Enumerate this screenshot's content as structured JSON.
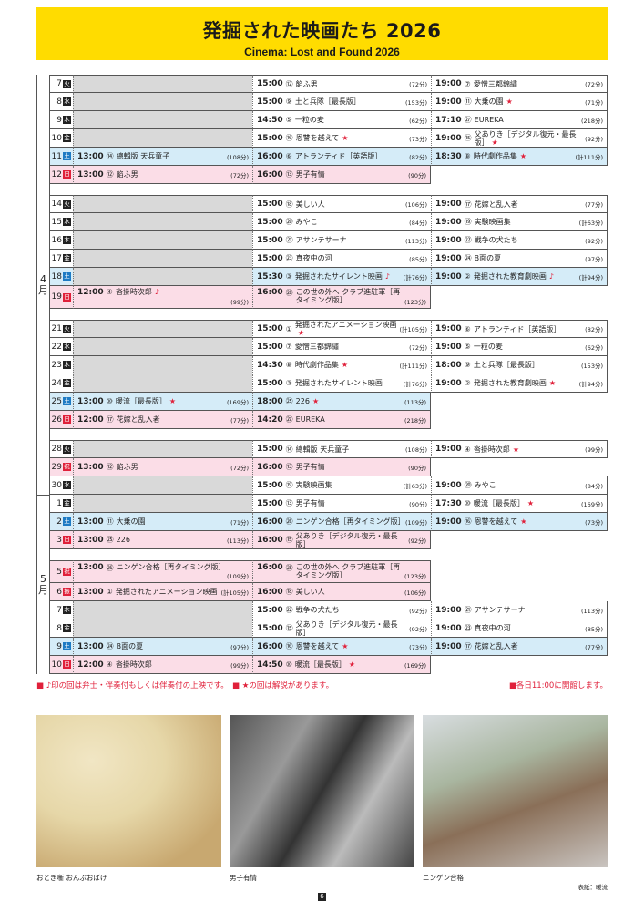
{
  "header": {
    "title": "発掘された映画たち 2026",
    "subtitle": "Cinema: Lost and Found 2026"
  },
  "colors": {
    "header_bg": "#ffdc00",
    "saturday_bg": "#d5ecf8",
    "sunday_holiday_bg": "#fbdde7",
    "no_screening_bg": "#d9d9d9",
    "star": "#e0203a"
  },
  "months": [
    {
      "label": "4",
      "unit": "月"
    },
    {
      "label": "5",
      "unit": "月"
    }
  ],
  "weeks": [
    [
      {
        "day": "7",
        "dow": "火",
        "type": "wd",
        "cells": [
          null,
          {
            "time": "15:00",
            "num": "⑫",
            "title": "餡ふ男",
            "dur": "(72分)"
          },
          {
            "time": "19:00",
            "num": "⑦",
            "title": "愛憎三都錦繡",
            "dur": "(72分)"
          }
        ]
      },
      {
        "day": "8",
        "dow": "水",
        "type": "wd",
        "cells": [
          null,
          {
            "time": "15:00",
            "num": "⑨",
            "title": "土と兵隊［最長版］",
            "dur": "(153分)"
          },
          {
            "time": "19:00",
            "num": "⑪",
            "title": "大乗の園",
            "star": "★",
            "dur": "(71分)"
          }
        ]
      },
      {
        "day": "9",
        "dow": "木",
        "type": "wd",
        "cells": [
          null,
          {
            "time": "14:50",
            "num": "⑤",
            "title": "一粒の麦",
            "dur": "(62分)"
          },
          {
            "time": "17:10",
            "num": "㉗",
            "title": "EUREKA",
            "dur": "(218分)"
          }
        ]
      },
      {
        "day": "10",
        "dow": "金",
        "type": "wd",
        "cells": [
          null,
          {
            "time": "15:00",
            "num": "⑯",
            "title": "恩讐を越えて",
            "star": "★",
            "dur": "(73分)"
          },
          {
            "time": "19:00",
            "num": "⑮",
            "title": "父ありき［デジタル復元・最長版］",
            "star": "★",
            "dur": "(92分)"
          }
        ]
      },
      {
        "day": "11",
        "dow": "土",
        "type": "sat",
        "cells": [
          {
            "time": "13:00",
            "num": "⑭",
            "title": "總輯版 天兵童子",
            "dur": "(108分)"
          },
          {
            "time": "16:00",
            "num": "⑥",
            "title": "アトランティド［英語版］",
            "dur": "(82分)"
          },
          {
            "time": "18:30",
            "num": "⑧",
            "title": "時代劇作品集",
            "star": "★",
            "dur": "(計111分)"
          }
        ]
      },
      {
        "day": "12",
        "dow": "日",
        "type": "sun",
        "cells": [
          {
            "time": "13:00",
            "num": "⑫",
            "title": "餡ふ男",
            "dur": "(72分)"
          },
          {
            "time": "16:00",
            "num": "⑬",
            "title": "男子有情",
            "dur": "(90分)"
          }
        ]
      }
    ],
    [
      {
        "day": "14",
        "dow": "火",
        "type": "wd",
        "cells": [
          null,
          {
            "time": "15:00",
            "num": "⑱",
            "title": "美しい人",
            "dur": "(106分)"
          },
          {
            "time": "19:00",
            "num": "⑰",
            "title": "花嫁と乱入者",
            "dur": "(77分)"
          }
        ]
      },
      {
        "day": "15",
        "dow": "水",
        "type": "wd",
        "cells": [
          null,
          {
            "time": "15:00",
            "num": "⑳",
            "title": "みやこ",
            "dur": "(84分)"
          },
          {
            "time": "19:00",
            "num": "⑲",
            "title": "実験映画集",
            "dur": "(計63分)"
          }
        ]
      },
      {
        "day": "16",
        "dow": "木",
        "type": "wd",
        "cells": [
          null,
          {
            "time": "15:00",
            "num": "㉑",
            "title": "アサンテサーナ",
            "dur": "(113分)"
          },
          {
            "time": "19:00",
            "num": "㉒",
            "title": "戦争の犬たち",
            "dur": "(92分)"
          }
        ]
      },
      {
        "day": "17",
        "dow": "金",
        "type": "wd",
        "cells": [
          null,
          {
            "time": "15:00",
            "num": "㉓",
            "title": "真夜中の河",
            "dur": "(85分)"
          },
          {
            "time": "19:00",
            "num": "㉔",
            "title": "B面の夏",
            "dur": "(97分)"
          }
        ]
      },
      {
        "day": "18",
        "dow": "土",
        "type": "sat",
        "cells": [
          null,
          {
            "time": "15:30",
            "num": "③",
            "title": "発掘されたサイレント映画",
            "note": "♪",
            "dur": "(計76分)"
          },
          {
            "time": "19:00",
            "num": "②",
            "title": "発掘された教育劇映画",
            "note": "♪",
            "dur": "(計94分)"
          }
        ]
      },
      {
        "day": "19",
        "dow": "日",
        "type": "sun",
        "tall": true,
        "cells": [
          {
            "time": "12:00",
            "num": "④",
            "title": "沓掛時次郎",
            "note": "♪",
            "dur": "(99分)"
          },
          {
            "time": "16:00",
            "num": "㉘",
            "title": "この世の外へ クラブ進駐軍［再タイミング版］",
            "dur": "(123分)"
          }
        ]
      }
    ],
    [
      {
        "day": "21",
        "dow": "火",
        "type": "wd",
        "cells": [
          null,
          {
            "time": "15:00",
            "num": "①",
            "title": "発掘されたアニメーション映画",
            "star": "★",
            "dur": "(計105分)"
          },
          {
            "time": "19:00",
            "num": "⑥",
            "title": "アトランティド［英語版］",
            "dur": "(82分)"
          }
        ]
      },
      {
        "day": "22",
        "dow": "水",
        "type": "wd",
        "cells": [
          null,
          {
            "time": "15:00",
            "num": "⑦",
            "title": "愛憎三都錦繡",
            "dur": "(72分)"
          },
          {
            "time": "19:00",
            "num": "⑤",
            "title": "一粒の麦",
            "dur": "(62分)"
          }
        ]
      },
      {
        "day": "23",
        "dow": "木",
        "type": "wd",
        "cells": [
          null,
          {
            "time": "14:30",
            "num": "⑧",
            "title": "時代劇作品集",
            "star": "★",
            "dur": "(計111分)"
          },
          {
            "time": "18:00",
            "num": "⑨",
            "title": "土と兵隊［最長版］",
            "dur": "(153分)"
          }
        ]
      },
      {
        "day": "24",
        "dow": "金",
        "type": "wd",
        "cells": [
          null,
          {
            "time": "15:00",
            "num": "③",
            "title": "発掘されたサイレント映画",
            "dur": "(計76分)"
          },
          {
            "time": "19:00",
            "num": "②",
            "title": "発掘された教育劇映画",
            "star": "★",
            "dur": "(計94分)"
          }
        ]
      },
      {
        "day": "25",
        "dow": "土",
        "type": "sat",
        "cells": [
          {
            "time": "13:00",
            "num": "⑩",
            "title": "暖流［最長版］",
            "star": "★",
            "dur": "(169分)"
          },
          {
            "time": "18:00",
            "num": "㉕",
            "title": "226",
            "star": "★",
            "dur": "(113分)"
          }
        ]
      },
      {
        "day": "26",
        "dow": "日",
        "type": "sun",
        "cells": [
          {
            "time": "12:00",
            "num": "⑰",
            "title": "花嫁と乱入者",
            "dur": "(77分)"
          },
          {
            "time": "14:20",
            "num": "㉗",
            "title": "EUREKA",
            "dur": "(218分)"
          }
        ]
      }
    ],
    [
      {
        "day": "28",
        "dow": "火",
        "type": "wd",
        "cells": [
          null,
          {
            "time": "15:00",
            "num": "⑭",
            "title": "總輯版 天兵童子",
            "dur": "(108分)"
          },
          {
            "time": "19:00",
            "num": "④",
            "title": "沓掛時次郎",
            "star": "★",
            "dur": "(99分)"
          }
        ]
      },
      {
        "day": "29",
        "dow": "祝",
        "type": "hol",
        "cells": [
          {
            "time": "13:00",
            "num": "⑫",
            "title": "餡ふ男",
            "dur": "(72分)"
          },
          {
            "time": "16:00",
            "num": "⑬",
            "title": "男子有情",
            "dur": "(90分)"
          }
        ]
      },
      {
        "day": "30",
        "dow": "水",
        "type": "wd",
        "monthEnd": true,
        "cells": [
          null,
          {
            "time": "15:00",
            "num": "⑲",
            "title": "実験映画集",
            "dur": "(計63分)"
          },
          {
            "time": "19:00",
            "num": "⑳",
            "title": "みやこ",
            "dur": "(84分)"
          }
        ]
      },
      {
        "day": "1",
        "dow": "金",
        "type": "wd",
        "cells": [
          null,
          {
            "time": "15:00",
            "num": "⑬",
            "title": "男子有情",
            "dur": "(90分)"
          },
          {
            "time": "17:30",
            "num": "⑩",
            "title": "暖流［最長版］",
            "star": "★",
            "dur": "(169分)"
          }
        ]
      },
      {
        "day": "2",
        "dow": "土",
        "type": "sat",
        "cells": [
          {
            "time": "13:00",
            "num": "⑪",
            "title": "大乗の園",
            "dur": "(71分)"
          },
          {
            "time": "16:00",
            "num": "㉖",
            "title": "ニンゲン合格［再タイミング版］",
            "dur": "(109分)"
          },
          {
            "time": "19:00",
            "num": "⑯",
            "title": "恩讐を越えて",
            "star": "★",
            "dur": "(73分)"
          }
        ]
      },
      {
        "day": "3",
        "dow": "日",
        "type": "sun",
        "cells": [
          {
            "time": "13:00",
            "num": "㉕",
            "title": "226",
            "dur": "(113分)"
          },
          {
            "time": "16:00",
            "num": "⑮",
            "title": "父ありき［デジタル復元・最長版］",
            "dur": "(92分)"
          }
        ]
      }
    ],
    [
      {
        "day": "5",
        "dow": "祝",
        "type": "hol",
        "tall": true,
        "cells": [
          {
            "time": "13:00",
            "num": "㉖",
            "title": "ニンゲン合格［再タイミング版］",
            "dur": "(109分)"
          },
          {
            "time": "16:00",
            "num": "㉘",
            "title": "この世の外へ クラブ進駐軍［再タイミング版］",
            "dur": "(123分)"
          }
        ]
      },
      {
        "day": "6",
        "dow": "振",
        "type": "hol",
        "cells": [
          {
            "time": "13:00",
            "num": "①",
            "title": "発掘されたアニメーション映画",
            "dur": "(計105分)"
          },
          {
            "time": "16:00",
            "num": "⑱",
            "title": "美しい人",
            "dur": "(106分)"
          }
        ]
      },
      {
        "day": "7",
        "dow": "木",
        "type": "wd",
        "cells": [
          null,
          {
            "time": "15:00",
            "num": "㉒",
            "title": "戦争の犬たち",
            "dur": "(92分)"
          },
          {
            "time": "19:00",
            "num": "㉑",
            "title": "アサンテサーナ",
            "dur": "(113分)"
          }
        ]
      },
      {
        "day": "8",
        "dow": "金",
        "type": "wd",
        "cells": [
          null,
          {
            "time": "15:00",
            "num": "⑮",
            "title": "父ありき［デジタル復元・最長版］",
            "dur": "(92分)"
          },
          {
            "time": "19:00",
            "num": "㉓",
            "title": "真夜中の河",
            "dur": "(85分)"
          }
        ]
      },
      {
        "day": "9",
        "dow": "土",
        "type": "sat",
        "cells": [
          {
            "time": "13:00",
            "num": "㉔",
            "title": "B面の夏",
            "dur": "(97分)"
          },
          {
            "time": "16:00",
            "num": "⑯",
            "title": "恩讐を越えて",
            "star": "★",
            "dur": "(73分)"
          },
          {
            "time": "19:00",
            "num": "⑰",
            "title": "花嫁と乱入者",
            "dur": "(77分)"
          }
        ]
      },
      {
        "day": "10",
        "dow": "日",
        "type": "sun",
        "cells": [
          {
            "time": "12:00",
            "num": "④",
            "title": "沓掛時次郎",
            "dur": "(99分)"
          },
          {
            "time": "14:50",
            "num": "⑩",
            "title": "暖流［最長版］",
            "star": "★",
            "dur": "(169分)"
          }
        ]
      }
    ]
  ],
  "notes": {
    "left": "■ ♪印の回は弁士・伴奏付もしくは伴奏付の上映です。　■ ★の回は解説があります。",
    "right": "■各日11:00に開館します。"
  },
  "photos": [
    {
      "caption": "おとぎ噺 おんぶおばけ"
    },
    {
      "caption": "男子有情"
    },
    {
      "caption": "ニンゲン合格"
    }
  ],
  "cover_credit": "表紙：暖流",
  "page_number": "6"
}
